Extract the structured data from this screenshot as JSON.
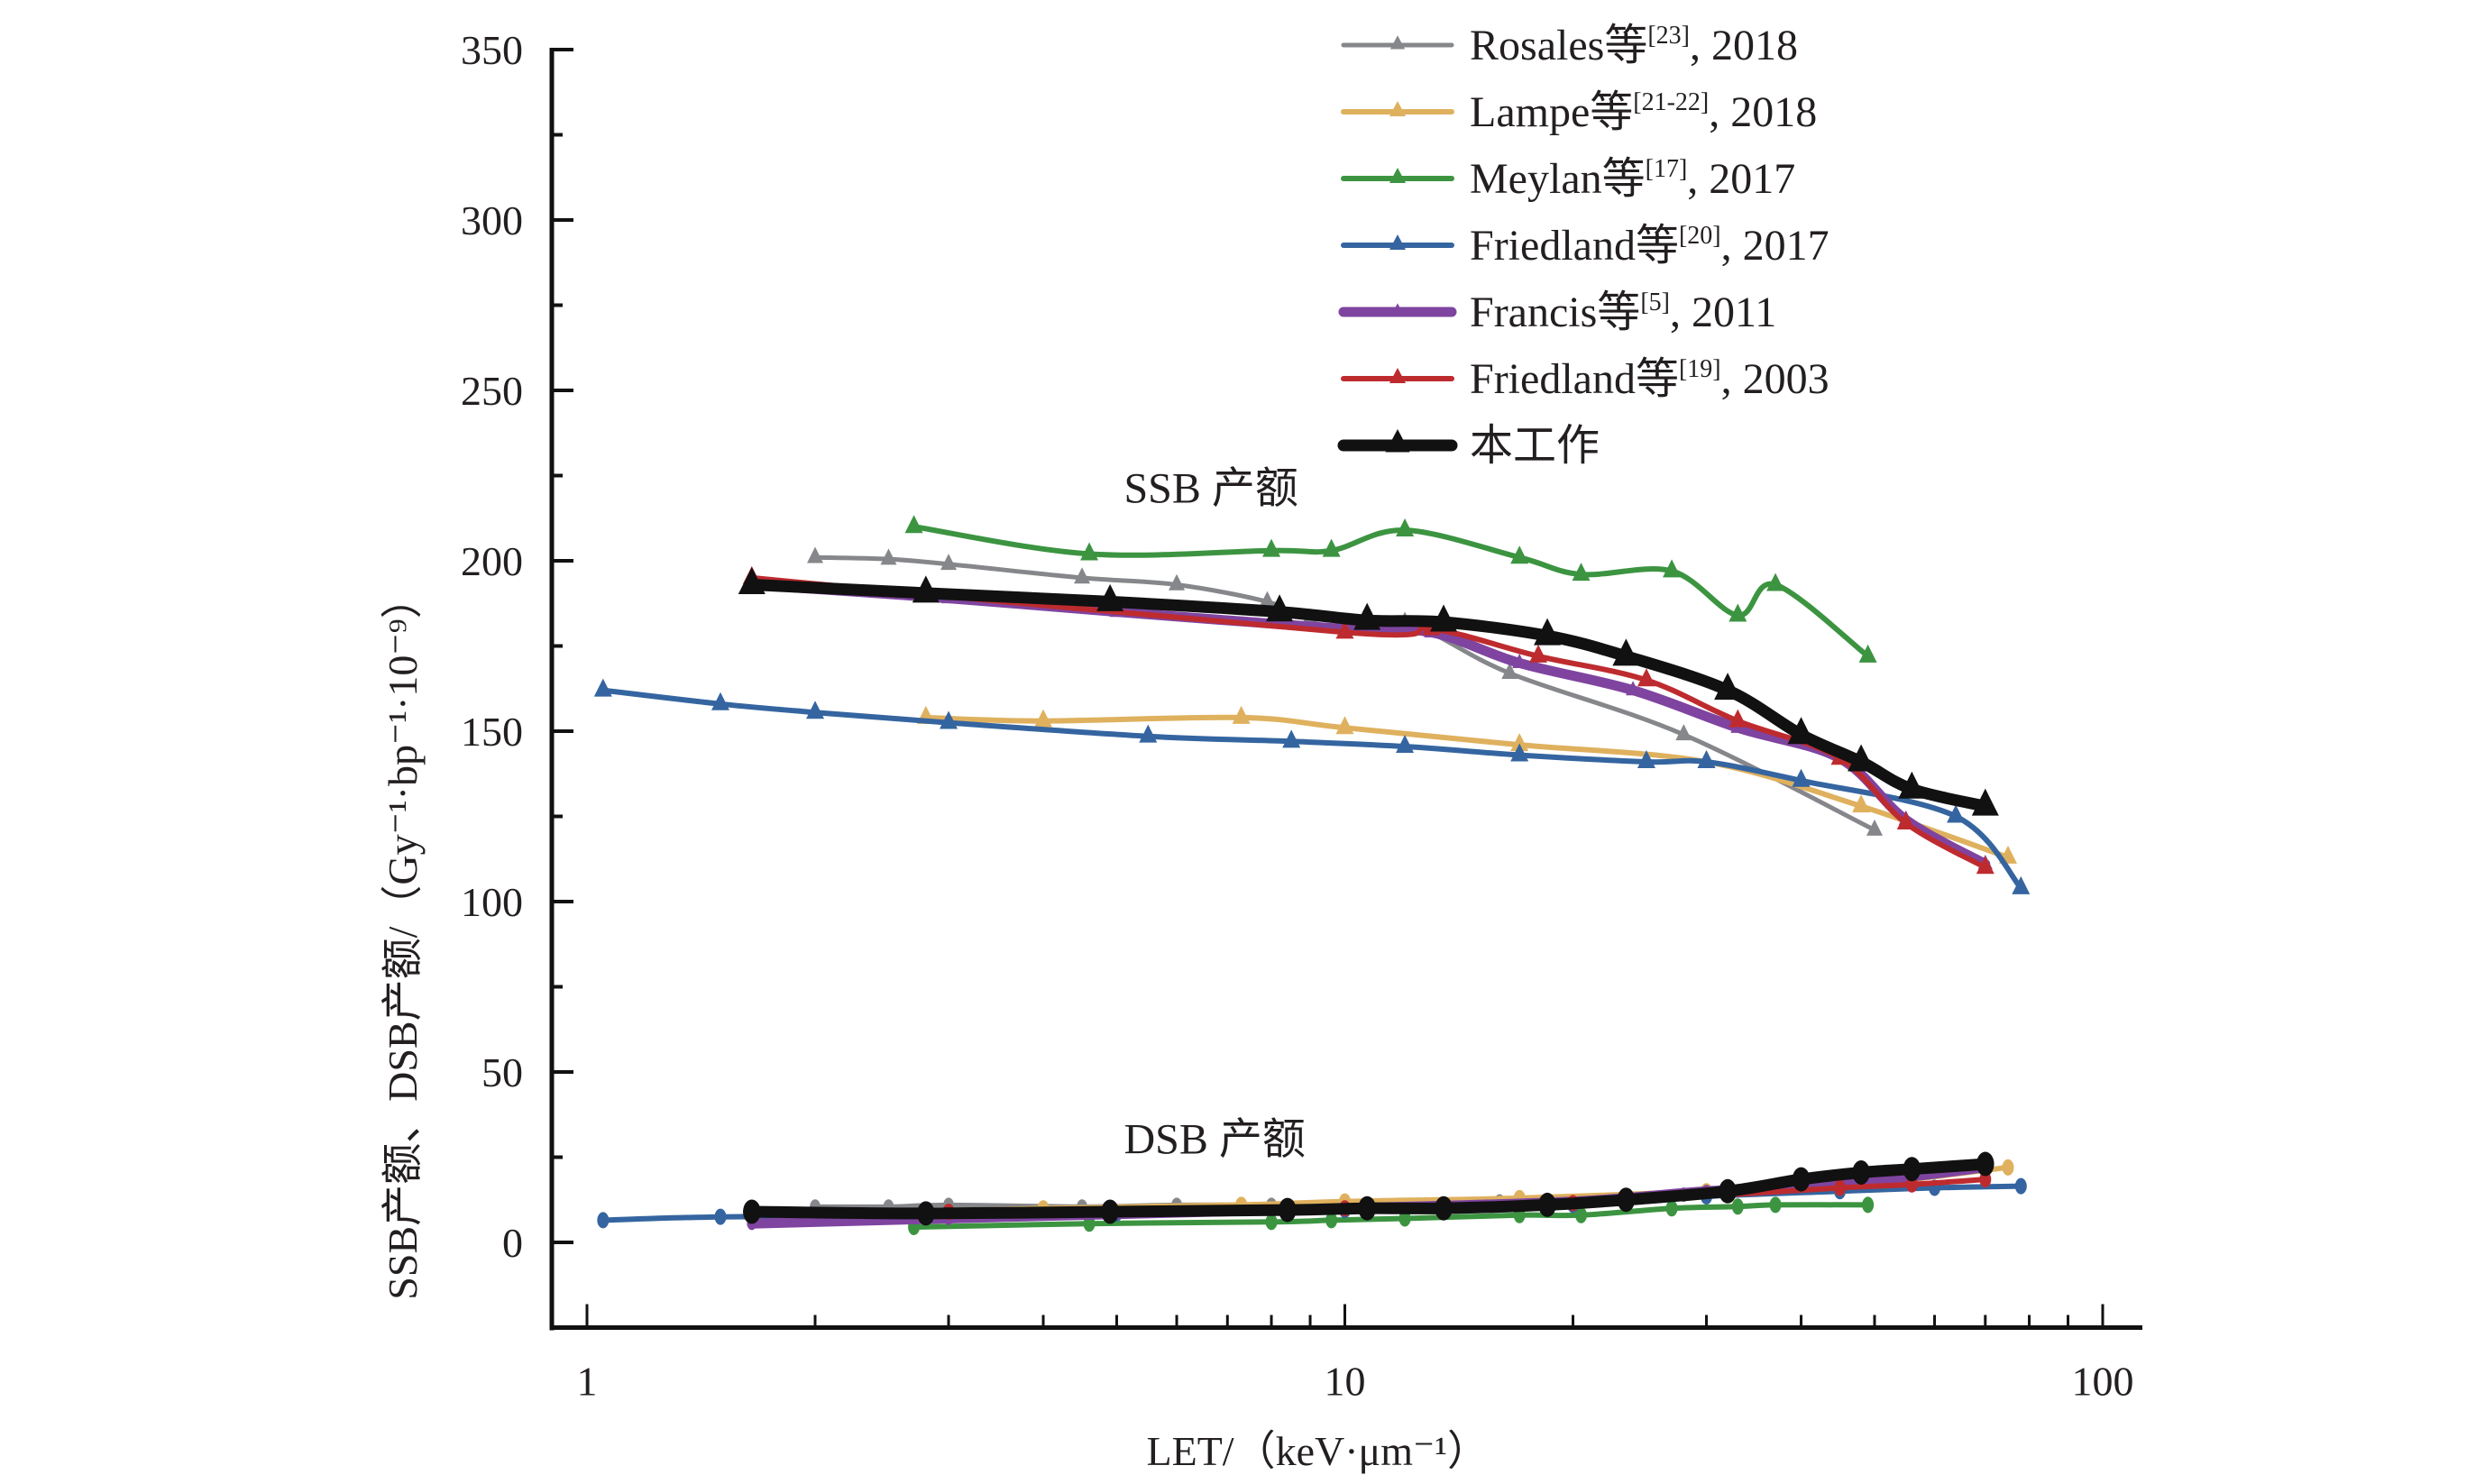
{
  "chart_data": {
    "type": "line",
    "title": "",
    "xlabel": "LET/（keV·μm⁻¹）",
    "ylabel": "SSB产额、DSB产额/（Gy⁻¹·bp⁻¹·10⁻⁹）",
    "xscale": "log",
    "xlim": [
      1,
      100
    ],
    "ylim": [
      -25,
      350
    ],
    "x_ticks": [
      1,
      10,
      100
    ],
    "x_tick_labels": [
      "1",
      "10",
      "100"
    ],
    "y_ticks": [
      0,
      50,
      100,
      150,
      200,
      250,
      300,
      350
    ],
    "y_tick_labels": [
      "0",
      "50",
      "100",
      "150",
      "200",
      "250",
      "300",
      "350"
    ],
    "grid": false,
    "legend_position": "top-right",
    "annotations": [
      {
        "text": "SSB 产额",
        "x": 7.5,
        "y": 217
      },
      {
        "text": "DSB 产额",
        "x": 7.5,
        "y": 26
      }
    ],
    "series": [
      {
        "name": "Rosales等[23], 2018",
        "label_main": "Rosales等",
        "label_ref": "[23]",
        "label_year": ", 2018",
        "color": "#85878b",
        "marker": "triangle",
        "ssb": [
          [
            2.0,
            201
          ],
          [
            2.5,
            200.5
          ],
          [
            3.0,
            199
          ],
          [
            4.5,
            195
          ],
          [
            6.0,
            193
          ],
          [
            7.9,
            188
          ],
          [
            9.0,
            183
          ],
          [
            12,
            182
          ],
          [
            16.5,
            167
          ],
          [
            28,
            149
          ],
          [
            50,
            121
          ]
        ],
        "dsb": [
          [
            2.0,
            10.5
          ],
          [
            2.5,
            10.5
          ],
          [
            3.0,
            11
          ],
          [
            4.5,
            10.5
          ],
          [
            6.0,
            11
          ],
          [
            8.0,
            11
          ],
          [
            10,
            11
          ],
          [
            12,
            11
          ],
          [
            16,
            12
          ],
          [
            28,
            14
          ],
          [
            50,
            20
          ]
        ]
      },
      {
        "name": "Lampe等[21-22], 2018",
        "label_main": "Lampe等",
        "label_ref": "[21-22]",
        "label_year": ", 2018",
        "color": "#dfb15e",
        "marker": "triangle",
        "ssb": [
          [
            2.8,
            154
          ],
          [
            4.0,
            153
          ],
          [
            7.3,
            154
          ],
          [
            10,
            151
          ],
          [
            17,
            146
          ],
          [
            30,
            141
          ],
          [
            48,
            128
          ],
          [
            75,
            113
          ]
        ],
        "dsb": [
          [
            2.8,
            9
          ],
          [
            4.0,
            10
          ],
          [
            7.3,
            11
          ],
          [
            10,
            12
          ],
          [
            17,
            13
          ],
          [
            30,
            15
          ],
          [
            48,
            17
          ],
          [
            75,
            22
          ]
        ]
      },
      {
        "name": "Meylan等[17], 2017",
        "label_main": "Meylan等",
        "label_ref": "[17]",
        "label_year": ", 2017",
        "color": "#3c9441",
        "marker": "triangle",
        "ssb": [
          [
            2.7,
            210
          ],
          [
            4.6,
            202
          ],
          [
            8,
            203
          ],
          [
            9.6,
            203
          ],
          [
            12,
            209
          ],
          [
            17,
            201
          ],
          [
            20.5,
            196
          ],
          [
            27,
            197
          ],
          [
            33,
            184
          ],
          [
            37,
            193
          ],
          [
            49,
            172
          ]
        ],
        "dsb": [
          [
            2.7,
            4.5
          ],
          [
            4.6,
            5.5
          ],
          [
            8,
            6
          ],
          [
            9.6,
            6.5
          ],
          [
            12,
            7
          ],
          [
            17,
            8
          ],
          [
            20.5,
            8
          ],
          [
            27,
            10
          ],
          [
            33,
            10.5
          ],
          [
            37,
            11
          ],
          [
            49,
            11
          ]
        ]
      },
      {
        "name": "Friedland等[20], 2017",
        "label_main": "Friedland等",
        "label_ref": "[20]",
        "label_year": ", 2017",
        "color": "#3565a0",
        "marker": "triangle",
        "ssb": [
          [
            1.05,
            162
          ],
          [
            1.5,
            158
          ],
          [
            2.0,
            155.5
          ],
          [
            3.0,
            152.5
          ],
          [
            5.5,
            148.5
          ],
          [
            8.5,
            147
          ],
          [
            12,
            145.5
          ],
          [
            17,
            143
          ],
          [
            25,
            141
          ],
          [
            30,
            141
          ],
          [
            40,
            135.5
          ],
          [
            64,
            125
          ],
          [
            78,
            104
          ]
        ],
        "dsb": [
          [
            1.05,
            6.5
          ],
          [
            1.5,
            7.5
          ],
          [
            2.8,
            8
          ],
          [
            5,
            8.5
          ],
          [
            10,
            9.5
          ],
          [
            20,
            11
          ],
          [
            30,
            13.5
          ],
          [
            45,
            15
          ],
          [
            60,
            16
          ],
          [
            78,
            16.5
          ]
        ]
      },
      {
        "name": "Francis等[5], 2011",
        "label_main": "Francis等",
        "label_ref": "[5]",
        "label_year": ", 2011",
        "color": "#7f44a0",
        "marker": "triangle",
        "ssb": [
          [
            1.65,
            193
          ],
          [
            3,
            189
          ],
          [
            5,
            185
          ],
          [
            10,
            180
          ],
          [
            13,
            179
          ],
          [
            17,
            170
          ],
          [
            24,
            162
          ],
          [
            33,
            151
          ],
          [
            45,
            142
          ],
          [
            55,
            124
          ],
          [
            70,
            111
          ]
        ],
        "dsb": [
          [
            1.65,
            5.5
          ],
          [
            3,
            7
          ],
          [
            10,
            10
          ],
          [
            20,
            12
          ],
          [
            30,
            15
          ],
          [
            45,
            17
          ],
          [
            70,
            22
          ]
        ]
      },
      {
        "name": "Friedland等[19], 2003",
        "label_main": "Friedland等",
        "label_ref": "[19]",
        "label_year": ", 2003",
        "color": "#be2b2f",
        "marker": "triangle",
        "ssb": [
          [
            1.65,
            195
          ],
          [
            10,
            179
          ],
          [
            13,
            180
          ],
          [
            18,
            172
          ],
          [
            25,
            165
          ],
          [
            33,
            153
          ],
          [
            45,
            142
          ],
          [
            55,
            123
          ],
          [
            70,
            110
          ]
        ],
        "dsb": [
          [
            1.65,
            9
          ],
          [
            3,
            9
          ],
          [
            10,
            10
          ],
          [
            20,
            11.5
          ],
          [
            32,
            14
          ],
          [
            45,
            16
          ],
          [
            56,
            17
          ],
          [
            70,
            18.5
          ]
        ]
      },
      {
        "name": "本工作",
        "label_main": "本工作",
        "label_ref": "",
        "label_year": "",
        "color": "#111111",
        "marker": "triangle",
        "ssb": [
          [
            1.65,
            193
          ],
          [
            2.8,
            190.5
          ],
          [
            4.9,
            188
          ],
          [
            8.2,
            185
          ],
          [
            10.7,
            182.5
          ],
          [
            13.5,
            182
          ],
          [
            18.5,
            178
          ],
          [
            23.5,
            172
          ],
          [
            32,
            162
          ],
          [
            40,
            149
          ],
          [
            48,
            141
          ],
          [
            56,
            133
          ],
          [
            70,
            128
          ]
        ],
        "dsb": [
          [
            1.65,
            9
          ],
          [
            2.8,
            8.5
          ],
          [
            4.9,
            9
          ],
          [
            8.4,
            9.5
          ],
          [
            10.7,
            10
          ],
          [
            13.5,
            10
          ],
          [
            18.5,
            11
          ],
          [
            23.5,
            12.5
          ],
          [
            32,
            15
          ],
          [
            40,
            18.5
          ],
          [
            48,
            20.5
          ],
          [
            56,
            21.5
          ],
          [
            70,
            23
          ]
        ]
      }
    ]
  }
}
